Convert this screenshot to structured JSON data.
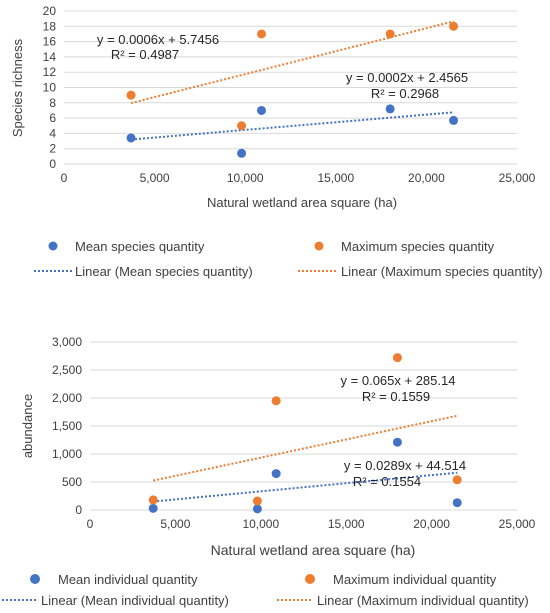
{
  "chart_data": [
    {
      "type": "scatter",
      "xlabel": "Natural wetland area square (ha)",
      "ylabel": "Species richness",
      "xlim": [
        0,
        25000
      ],
      "ylim": [
        0,
        20
      ],
      "x_ticks": [
        "0",
        "5,000",
        "10,000",
        "15,000",
        "20,000",
        "25,000"
      ],
      "y_ticks": [
        "0",
        "2",
        "4",
        "6",
        "8",
        "10",
        "12",
        "14",
        "16",
        "18",
        "20"
      ],
      "grid": "horizontal",
      "legend_position": "bottom",
      "series": [
        {
          "name": "Mean species quantity",
          "color": "#4472c4",
          "x": [
            3700,
            9800,
            10900,
            18000,
            21500
          ],
          "y": [
            3.4,
            1.4,
            7.0,
            7.2,
            5.7
          ],
          "trendline": {
            "name": "Linear (Mean species quantity)",
            "slope": 0.0002,
            "intercept": 2.4565,
            "equation": "y = 0.0002x + 2.4565",
            "r2": "R² = 0.2968"
          }
        },
        {
          "name": "Maximum species quantity",
          "color": "#ed7d31",
          "x": [
            3700,
            9800,
            10900,
            18000,
            21500
          ],
          "y": [
            9.0,
            5.0,
            17.0,
            17.0,
            18.0
          ],
          "trendline": {
            "name": "Linear (Maximum species quantity)",
            "slope": 0.0006,
            "intercept": 5.7456,
            "equation": "y = 0.0006x + 5.7456",
            "r2": "R² = 0.4987"
          }
        }
      ]
    },
    {
      "type": "scatter",
      "xlabel": "Natural wetland area square (ha)",
      "ylabel": "abundance",
      "xlim": [
        0,
        25000
      ],
      "ylim": [
        0,
        3000
      ],
      "x_ticks": [
        "0",
        "5,000",
        "10,000",
        "15,000",
        "20,000",
        "25,000"
      ],
      "y_ticks": [
        "0",
        "500",
        "1,000",
        "1,500",
        "2,000",
        "2,500",
        "3,000"
      ],
      "grid": "horizontal",
      "legend_position": "bottom",
      "series": [
        {
          "name": "Mean individual quantity",
          "color": "#4472c4",
          "x": [
            3700,
            9800,
            10900,
            18000,
            21500
          ],
          "y": [
            30,
            20,
            650,
            1210,
            130
          ],
          "trendline": {
            "name": "Linear (Mean individual quantity)",
            "slope": 0.0289,
            "intercept": 44.514,
            "equation": "y = 0.0289x + 44.514",
            "r2": "R² = 0.1554"
          }
        },
        {
          "name": "Maximum individual quantity",
          "color": "#ed7d31",
          "x": [
            3700,
            9800,
            10900,
            18000,
            21500
          ],
          "y": [
            180,
            160,
            1950,
            2720,
            540
          ],
          "trendline": {
            "name": "Linear (Maximum individual quantity)",
            "slope": 0.065,
            "intercept": 285.14,
            "equation": "y = 0.065x + 285.14",
            "r2": "R² = 0.1559"
          }
        }
      ]
    }
  ]
}
